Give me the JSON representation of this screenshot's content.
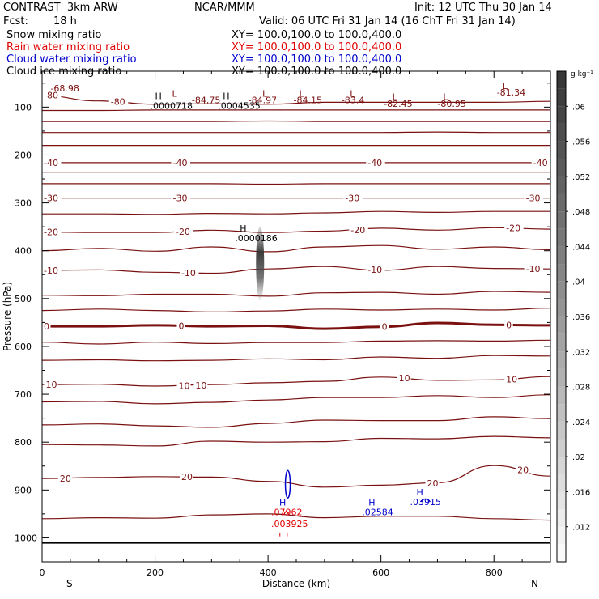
{
  "header": {
    "model": "CONTRAST  3km ARW",
    "center": "NCAR/MMM",
    "init": "Init: 12 UTC Thu 30 Jan 14",
    "fcst_label": "Fcst:",
    "fcst_value": "18 h",
    "valid": "Valid: 06 UTC Fri 31 Jan 14 (16 ChT Fri 31 Jan 14)"
  },
  "fields": [
    {
      "name": "Snow mixing ratio",
      "xy": "XY= 100.0,100.0 to 100.0,400.0",
      "color": "#000000"
    },
    {
      "name": "Rain water mixing ratio",
      "xy": "XY= 100.0,100.0 to 100.0,400.0",
      "color": "#e00000"
    },
    {
      "name": "Cloud water mixing ratio",
      "xy": "XY= 100.0,100.0 to 100.0,400.0",
      "color": "#0000cc"
    },
    {
      "name": "Cloud ice mixing ratio",
      "xy": "XY= 100.0,100.0 to 100.0,400.0",
      "color": "#000000"
    }
  ],
  "colors": {
    "temperature": "#7a1010",
    "rain": "#e00000",
    "cloud_water": "#0000cc",
    "ice": "#000000"
  },
  "chart_data": {
    "type": "contour",
    "xlabel": "Distance (km)",
    "ylabel": "Pressure (hPa)",
    "xlim": [
      0,
      900
    ],
    "ylim": [
      1050,
      25
    ],
    "x_ticks": [
      0,
      200,
      400,
      600,
      800
    ],
    "y_ticks": [
      100,
      200,
      300,
      400,
      500,
      600,
      700,
      800,
      900,
      1000
    ],
    "left_end": "S",
    "right_end": "N",
    "colorbar": {
      "unit": "g kg⁻¹",
      "ticks": [
        ".012",
        ".016",
        ".02",
        ".024",
        ".028",
        ".032",
        ".036",
        ".04",
        ".044",
        ".048",
        ".052",
        ".056",
        ".06"
      ],
      "min": 0.008,
      "max": 0.064
    },
    "isotherms": [
      {
        "label_value": "-80",
        "p": [
          76,
          87,
          94,
          93,
          94,
          90,
          90,
          90,
          90,
          88
        ],
        "labels": [
          {
            "x": -10,
            "text": "-80"
          },
          {
            "x": 120,
            "text": "-80"
          }
        ]
      },
      {
        "p": [
          107,
          107,
          106,
          106,
          106,
          106,
          106,
          106,
          106,
          106
        ],
        "labels": []
      },
      {
        "p": [
          130,
          130,
          130,
          130,
          129,
          130,
          130,
          130,
          130,
          130
        ],
        "labels": []
      },
      {
        "p": [
          153,
          153,
          153,
          153,
          153,
          153,
          153,
          152,
          153,
          153
        ],
        "labels": []
      },
      {
        "p": [
          180,
          180,
          180,
          180,
          180,
          180,
          180,
          180,
          180,
          180
        ],
        "labels": []
      },
      {
        "p": [
          216,
          216,
          216,
          216,
          216,
          216,
          216,
          216,
          216,
          216
        ],
        "labels": [
          {
            "x": -10,
            "text": "-40"
          },
          {
            "x": 230,
            "text": "-40"
          },
          {
            "x": 575,
            "text": "-40"
          },
          {
            "x": 868,
            "text": "-40"
          }
        ]
      },
      {
        "p": [
          236,
          236,
          236,
          236,
          236,
          236,
          236,
          236,
          236,
          236
        ],
        "labels": []
      },
      {
        "p": [
          260,
          260,
          260,
          260,
          261,
          260,
          260,
          260,
          260,
          260
        ],
        "labels": []
      },
      {
        "p": [
          290,
          290,
          290,
          290,
          290,
          290,
          290,
          290,
          290,
          290
        ],
        "labels": [
          {
            "x": -10,
            "text": "-30"
          },
          {
            "x": 230,
            "text": "-30"
          },
          {
            "x": 535,
            "text": "-30"
          },
          {
            "x": 855,
            "text": "-30"
          }
        ]
      },
      {
        "p": [
          323,
          323,
          324,
          322,
          323,
          321,
          318,
          320,
          318,
          318
        ],
        "labels": []
      },
      {
        "p": [
          361,
          362,
          362,
          357,
          362,
          359,
          353,
          357,
          352,
          355
        ],
        "labels": [
          {
            "x": -10,
            "text": "-20"
          },
          {
            "x": 235,
            "text": "-20"
          },
          {
            "x": 545,
            "text": "-20"
          },
          {
            "x": 820,
            "text": "-20"
          }
        ]
      },
      {
        "p": [
          400,
          395,
          401,
          392,
          402,
          392,
          389,
          397,
          392,
          398
        ],
        "labels": []
      },
      {
        "p": [
          441,
          440,
          445,
          447,
          438,
          433,
          441,
          433,
          437,
          438
        ],
        "labels": [
          {
            "x": -10,
            "text": "-10"
          },
          {
            "x": 245,
            "text": "-10"
          },
          {
            "x": 575,
            "text": "-10"
          },
          {
            "x": 855,
            "text": "-10"
          }
        ]
      },
      {
        "p": [
          493,
          494,
          491,
          491,
          495,
          488,
          487,
          491,
          485,
          487
        ],
        "labels": []
      },
      {
        "p": [
          525,
          522,
          525,
          528,
          526,
          522,
          524,
          522,
          524,
          520
        ],
        "labels": []
      },
      {
        "p": [
          558,
          558,
          556,
          558,
          557,
          563,
          559,
          551,
          555,
          556
        ],
        "labels": [
          {
            "x": -10,
            "text": "0"
          },
          {
            "x": 240,
            "text": "0"
          },
          {
            "x": 600,
            "text": "0"
          },
          {
            "x": 820,
            "text": "0"
          }
        ]
      },
      {
        "p": [
          591,
          595,
          591,
          594,
          592,
          592,
          589,
          588,
          589,
          587
        ],
        "labels": []
      },
      {
        "p": [
          629,
          628,
          630,
          629,
          626,
          628,
          622,
          625,
          619,
          620
        ],
        "labels": []
      },
      {
        "p": [
          680,
          679,
          683,
          680,
          676,
          673,
          664,
          671,
          670,
          663
        ],
        "labels": [
          {
            "x": 5,
            "text": "10"
          },
          {
            "x": 240,
            "text": "10"
          },
          {
            "x": 270,
            "text": "10"
          },
          {
            "x": 630,
            "text": "10"
          },
          {
            "x": 820,
            "text": "10"
          }
        ]
      },
      {
        "p": [
          716,
          715,
          720,
          717,
          712,
          707,
          707,
          703,
          707,
          701
        ],
        "labels": []
      },
      {
        "p": [
          764,
          762,
          766,
          769,
          761,
          754,
          755,
          755,
          747,
          751
        ],
        "labels": []
      },
      {
        "p": [
          805,
          806,
          808,
          798,
          800,
          799,
          792,
          793,
          788,
          791
        ],
        "labels": []
      },
      {
        "p": [
          876,
          874,
          872,
          873,
          882,
          894,
          890,
          885,
          849,
          871
        ],
        "labels": [
          {
            "x": 30,
            "text": "20"
          },
          {
            "x": 245,
            "text": "20"
          },
          {
            "x": 680,
            "text": "20"
          },
          {
            "x": 840,
            "text": "20"
          }
        ]
      },
      {
        "p": [
          960,
          958,
          959,
          952,
          950,
          958,
          955,
          955,
          960,
          963
        ],
        "labels": []
      }
    ],
    "thick_isotherm": 15,
    "lows": [
      {
        "x": 230,
        "p": 78,
        "text": "L"
      },
      {
        "x": 265,
        "p": 92,
        "text": "-84.75"
      },
      {
        "x": 390,
        "p": 78,
        "text": "L"
      },
      {
        "x": 365,
        "p": 92,
        "text": "-84.97"
      },
      {
        "x": 455,
        "p": 78,
        "text": "L"
      },
      {
        "x": 445,
        "p": 92,
        "text": "-84.15"
      },
      {
        "x": 545,
        "p": 78,
        "text": "L"
      },
      {
        "x": 530,
        "p": 92,
        "text": "-83.4"
      },
      {
        "x": 620,
        "p": 85,
        "text": "L"
      },
      {
        "x": 605,
        "p": 99,
        "text": "-82.45"
      },
      {
        "x": 710,
        "p": 85,
        "text": "L"
      },
      {
        "x": 700,
        "p": 99,
        "text": "-80.95"
      },
      {
        "x": 815,
        "p": 62,
        "text": "L"
      },
      {
        "x": 805,
        "p": 76,
        "text": "-81.34"
      },
      {
        "x": 15,
        "p": 67,
        "text": "-68.98"
      }
    ],
    "ice_highs": [
      {
        "x": 200,
        "p": 104,
        "h": "H",
        "value": ".0000718"
      },
      {
        "x": 320,
        "p": 104,
        "h": "H",
        "value": ".0004535"
      },
      {
        "x": 350,
        "p": 380,
        "h": "H",
        "value": ".0000186"
      }
    ],
    "cloud_water_highs": [
      {
        "x": 575,
        "p": 953,
        "h": "H",
        "value": ".02584"
      },
      {
        "x": 660,
        "p": 932,
        "h": "H",
        "value": ".03915"
      }
    ],
    "rain_highs": [
      {
        "x": 440,
        "p": 953,
        "h": "H",
        "value": ".07962"
      },
      {
        "x": 440,
        "p": 977,
        "h": "",
        "value": ".003925"
      }
    ],
    "ice_plume": {
      "x": 383,
      "p_top": 350,
      "p_bottom": 505,
      "value": 0.06
    }
  }
}
